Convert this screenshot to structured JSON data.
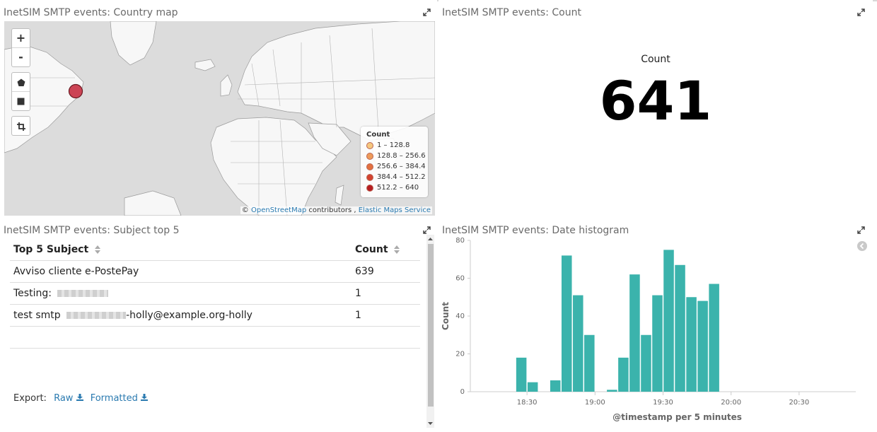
{
  "panels": {
    "map": {
      "title": "InetSIM SMTP events: Country map",
      "controls": {
        "zoom_in": "+",
        "zoom_out": "-"
      },
      "legend": {
        "title": "Count",
        "items": [
          {
            "label": "1 – 128.8",
            "color": "#f5c77e"
          },
          {
            "label": "128.8 – 256.6",
            "color": "#ee9b5a"
          },
          {
            "label": "256.6 – 384.4",
            "color": "#e2703f"
          },
          {
            "label": "384.4 – 512.2",
            "color": "#d2422f"
          },
          {
            "label": "512.2 – 640",
            "color": "#b51d21"
          }
        ]
      },
      "attribution": {
        "prefix": "©",
        "osm": "OpenStreetMap",
        "middle": "contributors ,",
        "ems": "Elastic Maps Service"
      }
    },
    "count": {
      "title": "InetSIM SMTP events: Count",
      "label": "Count",
      "value": "641"
    },
    "subject": {
      "title": "InetSIM SMTP events: Subject top 5",
      "headers": {
        "subject": "Top 5 Subject",
        "count": "Count"
      },
      "rows": [
        {
          "subject": "Avviso cliente e-PostePay",
          "count": "639"
        },
        {
          "subject": "Testing:",
          "count": "1"
        },
        {
          "subject": "test smtp",
          "suffix": "-holly@example.org-holly",
          "count": "1"
        }
      ],
      "export": {
        "label": "Export:",
        "raw": "Raw",
        "formatted": "Formatted"
      }
    },
    "histogram": {
      "title": "InetSIM SMTP events: Date histogram"
    }
  },
  "colors": {
    "bar": "#3bb3ac",
    "link": "#2a7ab0",
    "marker": "#cc4455"
  },
  "chart_data": {
    "type": "bar",
    "xlabel": "@timestamp per 5 minutes",
    "ylabel": "Count",
    "ylim": [
      0,
      80
    ],
    "yticks": [
      0,
      20,
      40,
      60,
      80
    ],
    "xticks": [
      "18:30",
      "19:00",
      "19:30",
      "20:00",
      "20:30"
    ],
    "interval_minutes": 5,
    "series": [
      {
        "x": [
          "18:25",
          "18:30",
          "18:40",
          "18:45",
          "18:50",
          "18:55",
          "19:05",
          "19:10",
          "19:15",
          "19:20",
          "19:25",
          "19:30",
          "19:35",
          "19:40",
          "19:45",
          "19:50"
        ],
        "values": [
          18,
          5,
          6,
          72,
          51,
          30,
          1,
          18,
          62,
          30,
          51,
          75,
          67,
          50,
          48,
          57
        ]
      }
    ]
  }
}
